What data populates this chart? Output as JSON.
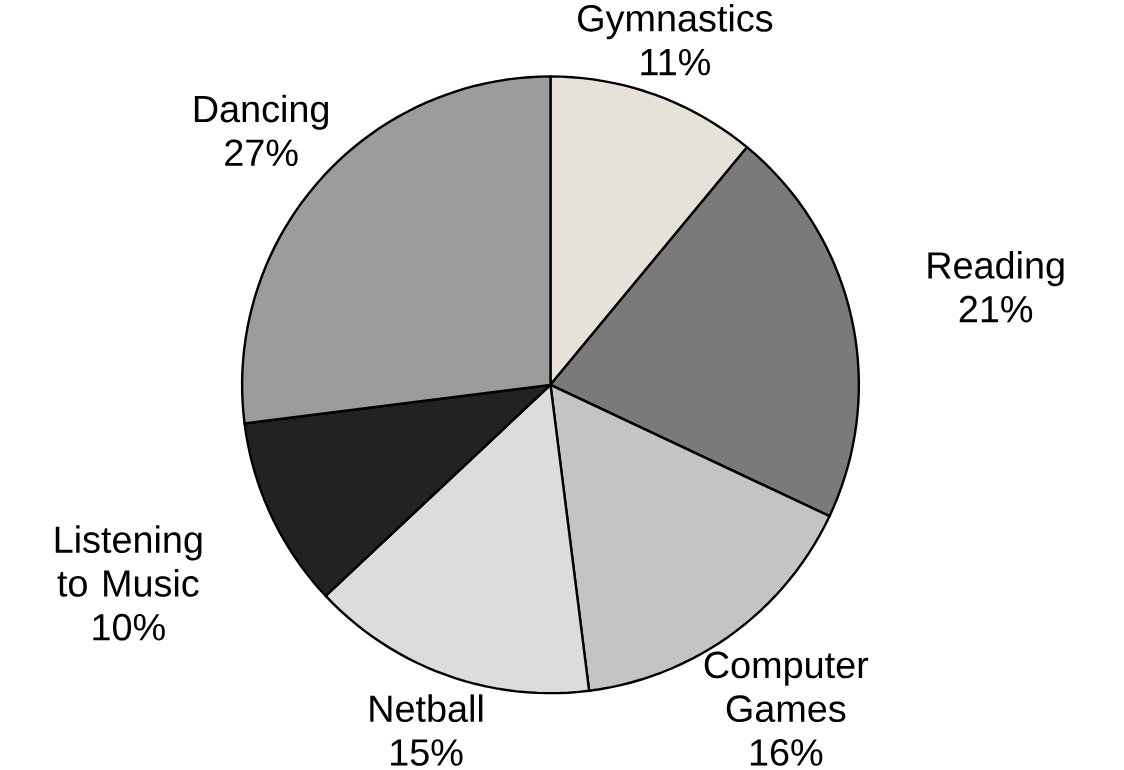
{
  "chart_data": {
    "type": "pie",
    "categories": [
      "Gymnastics",
      "Reading",
      "Computer Games",
      "Netball",
      "Listening to Music",
      "Dancing"
    ],
    "values": [
      11,
      21,
      16,
      15,
      10,
      27
    ],
    "value_labels": [
      "11%",
      "21%",
      "16%",
      "15%",
      "10%",
      "27%"
    ],
    "colors": [
      "#e6e2da",
      "#7a7a7a",
      "#c4c4c4",
      "#dcdcdc",
      "#222222",
      "#9c9c9c"
    ]
  }
}
